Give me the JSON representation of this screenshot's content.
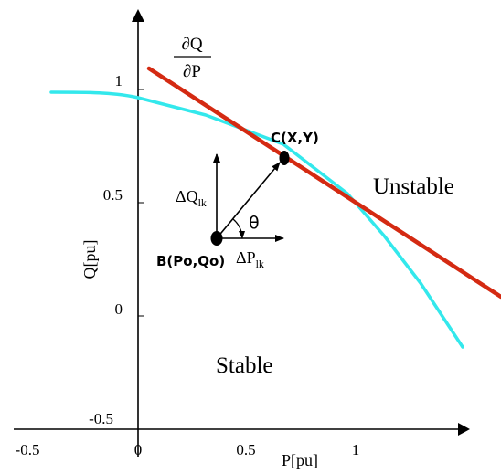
{
  "axes": {
    "x_label": "P[pu]",
    "y_label": "Q[pu]",
    "x_ticks": [
      "-0.5",
      "0",
      "0.5",
      "1"
    ],
    "y_ticks": [
      "1",
      "0.5",
      "0",
      "-0.5"
    ]
  },
  "gradient_label": {
    "numerator": "∂Q",
    "denominator": "∂P"
  },
  "points": {
    "c_label": "C(X,Y)",
    "b_label": "B(Po,Qo)"
  },
  "vectors": {
    "dq_delta": "ΔQ",
    "dq_sub": "lk",
    "dp_delta": "ΔP",
    "dp_sub": "lk",
    "angle": "θ"
  },
  "regions": {
    "unstable": "Unstable",
    "stable": "Stable"
  },
  "colors": {
    "curve": "#33e8ec",
    "tangent": "#d42a12",
    "axis": "#000000"
  }
}
